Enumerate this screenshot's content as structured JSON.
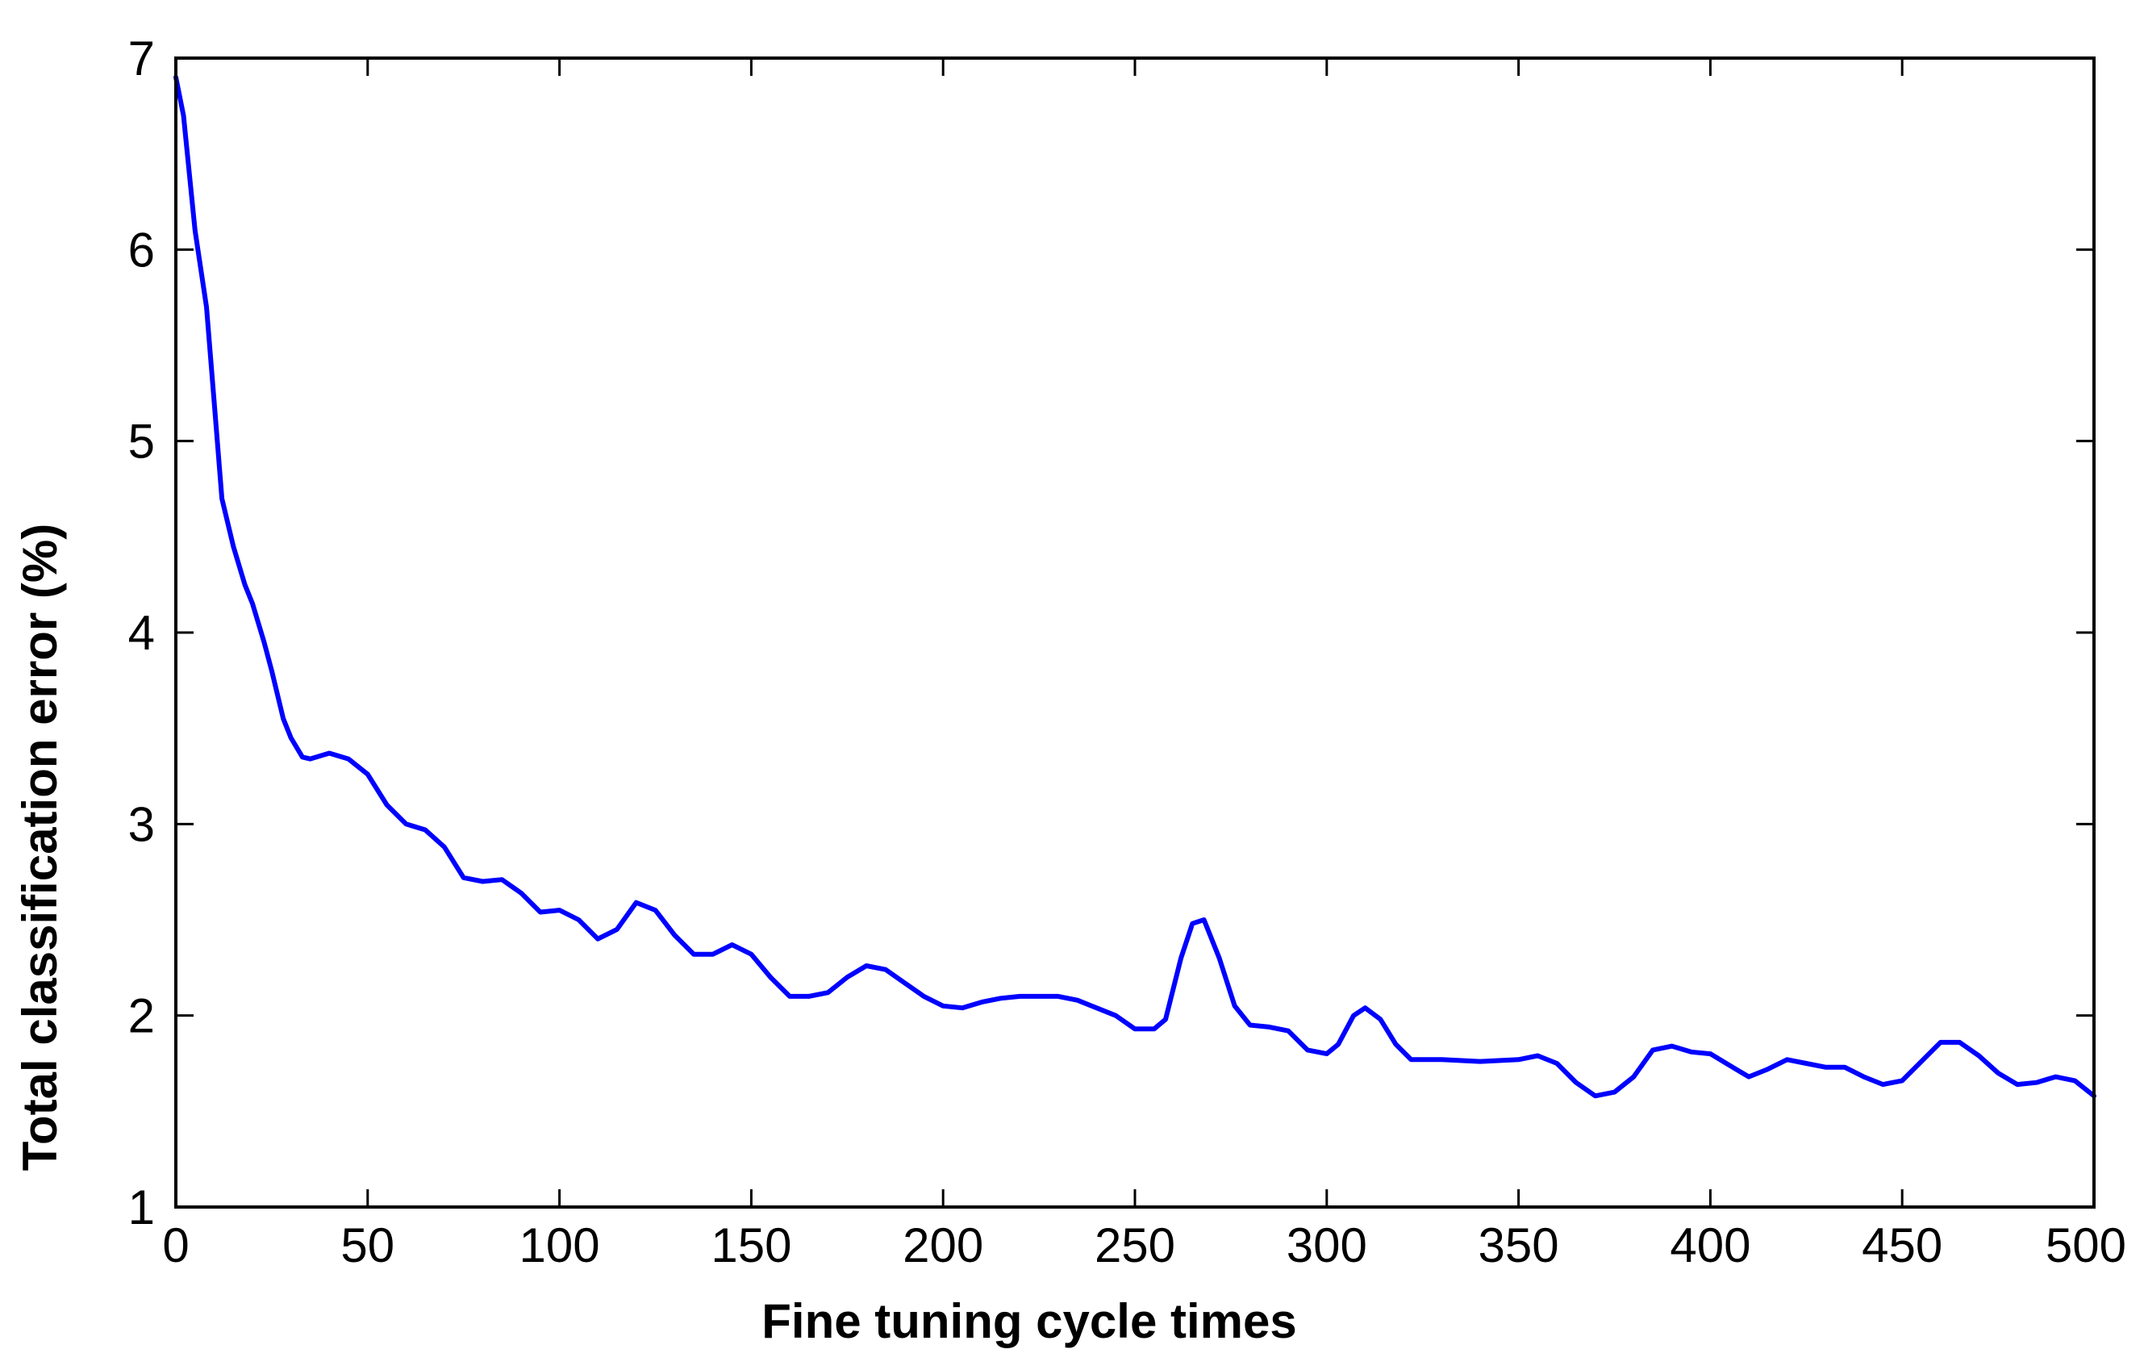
{
  "chart_data": {
    "type": "line",
    "title": "",
    "xlabel": "Fine tuning cycle times",
    "ylabel": "Total classification error (%)",
    "xlim": [
      0,
      500
    ],
    "ylim": [
      1,
      7
    ],
    "xticks": [
      0,
      50,
      100,
      150,
      200,
      250,
      300,
      350,
      400,
      450,
      500
    ],
    "yticks": [
      1,
      2,
      3,
      4,
      5,
      6,
      7
    ],
    "xtick_labels": [
      "0",
      "50",
      "100",
      "150",
      "200",
      "250",
      "300",
      "350",
      "400",
      "450",
      "500"
    ],
    "ytick_labels": [
      "1",
      "2",
      "3",
      "4",
      "5",
      "6",
      "7"
    ],
    "grid": false,
    "series": [
      {
        "name": "Total classification error",
        "color": "#0000ff",
        "x": [
          0,
          2,
          5,
          8,
          10,
          12,
          15,
          18,
          20,
          23,
          25,
          28,
          30,
          33,
          35,
          40,
          45,
          50,
          55,
          60,
          65,
          70,
          75,
          80,
          85,
          90,
          95,
          100,
          105,
          110,
          115,
          120,
          125,
          130,
          135,
          140,
          145,
          150,
          155,
          160,
          165,
          170,
          175,
          180,
          185,
          190,
          195,
          200,
          205,
          210,
          215,
          220,
          225,
          230,
          235,
          240,
          245,
          250,
          255,
          258,
          262,
          265,
          268,
          272,
          276,
          280,
          285,
          290,
          295,
          300,
          303,
          307,
          310,
          314,
          318,
          322,
          330,
          340,
          350,
          355,
          360,
          365,
          370,
          375,
          380,
          385,
          390,
          395,
          400,
          405,
          410,
          415,
          420,
          425,
          430,
          435,
          440,
          445,
          450,
          455,
          460,
          465,
          470,
          475,
          480,
          485,
          490,
          495,
          500
        ],
        "values": [
          6.9,
          6.7,
          6.1,
          5.7,
          5.2,
          4.7,
          4.45,
          4.25,
          4.15,
          3.95,
          3.8,
          3.55,
          3.45,
          3.35,
          3.34,
          3.37,
          3.34,
          3.26,
          3.1,
          3.0,
          2.97,
          2.88,
          2.72,
          2.7,
          2.71,
          2.64,
          2.54,
          2.55,
          2.5,
          2.4,
          2.45,
          2.59,
          2.55,
          2.42,
          2.32,
          2.32,
          2.37,
          2.32,
          2.2,
          2.1,
          2.1,
          2.12,
          2.2,
          2.26,
          2.24,
          2.17,
          2.1,
          2.05,
          2.04,
          2.07,
          2.09,
          2.1,
          2.1,
          2.1,
          2.08,
          2.04,
          2.0,
          1.93,
          1.93,
          1.98,
          2.3,
          2.48,
          2.5,
          2.3,
          2.05,
          1.95,
          1.94,
          1.92,
          1.82,
          1.8,
          1.85,
          2.0,
          2.04,
          1.98,
          1.85,
          1.77,
          1.77,
          1.76,
          1.77,
          1.79,
          1.75,
          1.65,
          1.58,
          1.6,
          1.68,
          1.82,
          1.84,
          1.81,
          1.8,
          1.74,
          1.68,
          1.72,
          1.77,
          1.75,
          1.73,
          1.73,
          1.68,
          1.64,
          1.66,
          1.76,
          1.86,
          1.86,
          1.79,
          1.7,
          1.64,
          1.65,
          1.68,
          1.66,
          1.58
        ]
      }
    ]
  }
}
